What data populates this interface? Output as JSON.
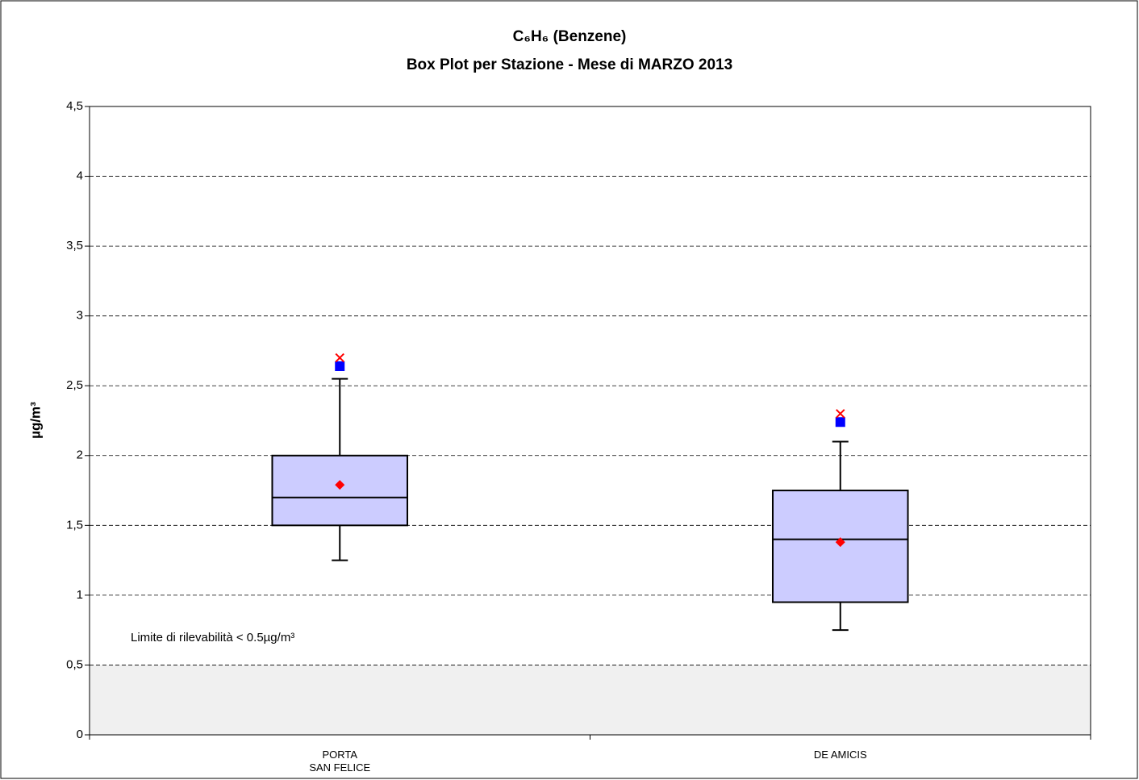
{
  "chart_data": {
    "type": "box",
    "title": "C₆H₆ (Benzene)",
    "subtitle": "Box Plot per Stazione - Mese di MARZO 2013",
    "y_label": "µg/m³",
    "annotation": "Limite di rilevabilità < 0.5µg/m³",
    "detection_limit": 0.5,
    "categories": [
      "PORTA\nSAN FELICE",
      "DE AMICIS"
    ],
    "boxes": [
      {
        "low": 1.25,
        "q1": 1.5,
        "median": 1.7,
        "q3": 2.0,
        "high": 2.55,
        "mean": 1.79,
        "square": 2.64,
        "cross": 2.7
      },
      {
        "low": 0.75,
        "q1": 0.95,
        "median": 1.4,
        "q3": 1.75,
        "high": 2.1,
        "mean": 1.38,
        "square": 2.24,
        "cross": 2.3
      }
    ],
    "colors": {
      "box": "#ccccff",
      "mean": "#ff0000",
      "square": "#0000ff",
      "cross": "#ff0000",
      "limit_band": "#f0f0f0"
    },
    "ylim": [
      0,
      4.5
    ],
    "yticks": [
      0,
      {
        "value": 0.5,
        "label": "0,5"
      },
      1,
      {
        "value": 1.5,
        "label": "1,5"
      },
      2,
      {
        "value": 2.5,
        "label": "2,5"
      },
      3,
      {
        "value": 3.5,
        "label": "3,5"
      },
      4,
      {
        "value": 4.5,
        "label": "4,5"
      }
    ],
    "grid": true
  }
}
